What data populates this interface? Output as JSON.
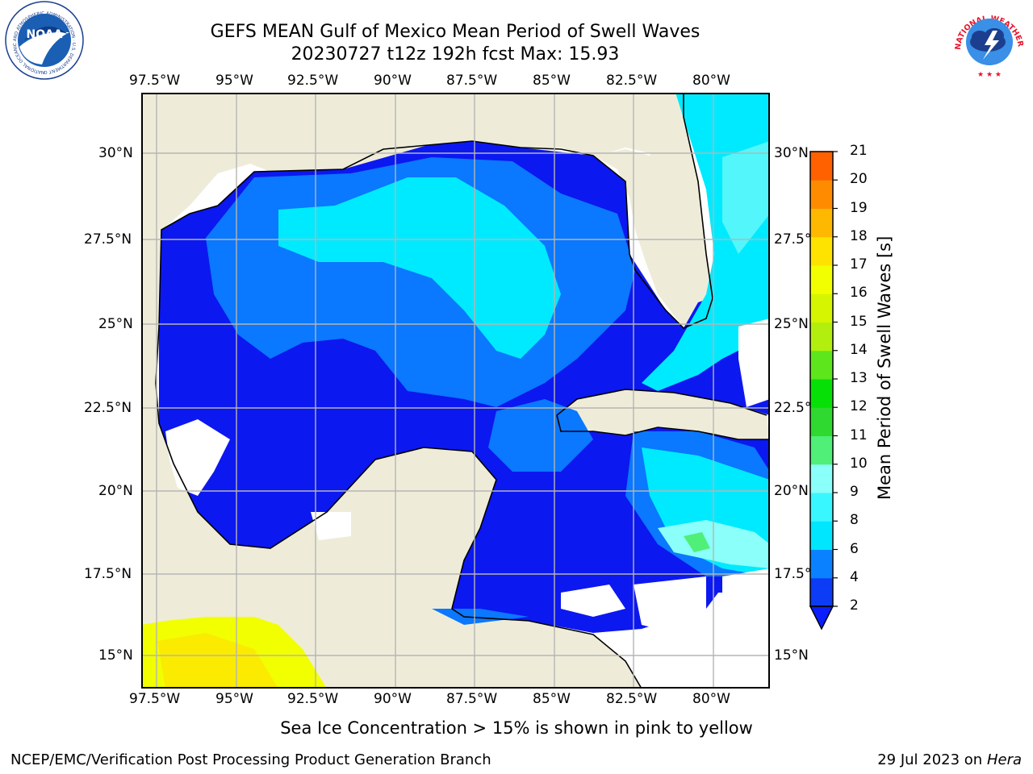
{
  "header": {
    "title": "GEFS MEAN Gulf of Mexico Mean Period of Swell Waves",
    "subtitle": "20230727 t12z 192h fcst   Max: 15.93"
  },
  "logos": {
    "left": "NOAA",
    "left_ring": "NATIONAL OCEANIC AND ATMOSPHERIC ADMINISTRATION · U.S. DEPARTMENT OF COMMERCE",
    "right_ring": "NATIONAL WEATHER SERVICE"
  },
  "map": {
    "lon_top": [
      "97.5°W",
      "95°W",
      "92.5°W",
      "90°W",
      "87.5°W",
      "85°W",
      "82.5°W",
      "80°W"
    ],
    "lon_bottom": [
      "97.5°W",
      "95°W",
      "92.5°W",
      "90°W",
      "87.5°W",
      "85°W",
      "82.5°W",
      "80°W"
    ],
    "lat_left": [
      "30°N",
      "27.5°N",
      "25°N",
      "22.5°N",
      "20°N",
      "17.5°N",
      "15°N"
    ],
    "lat_right": [
      "30°N",
      "27.5°N",
      "25°N",
      "22.5°N",
      "20°N",
      "17.5°N",
      "15°N"
    ],
    "extent": {
      "lon": [
        -98,
        -79.2
      ],
      "lat": [
        14,
        31.8
      ]
    },
    "colors": {
      "land": "#eeecd9",
      "coast": "#000000",
      "grid": "#b5b5b5",
      "missing": "#ffffff"
    }
  },
  "colorbar": {
    "label": "Mean Period of Swell Waves [s]",
    "ticks": [
      "2",
      "4",
      "6",
      "8",
      "9",
      "10",
      "11",
      "12",
      "13",
      "14",
      "15",
      "16",
      "17",
      "18",
      "19",
      "20",
      "21"
    ],
    "colors": [
      "#0c3cf5",
      "#0a82ff",
      "#00e6ff",
      "#39f7ff",
      "#8bfff9",
      "#50ef78",
      "#2fd92f",
      "#07e007",
      "#5ee61c",
      "#b2ef0e",
      "#d6f500",
      "#f2ff00",
      "#ffe300",
      "#ffb800",
      "#ff8c00",
      "#ff6000",
      "#ff3c00",
      "#ff1a00"
    ],
    "extend_color": "#0a1eff"
  },
  "footer": {
    "note": "Sea Ice Concentration > 15% is shown in pink to yellow",
    "credit": "NCEP/EMC/Verification Post Processing Product Generation Branch",
    "date": "29 Jul 2023 on ",
    "machine": "Hera"
  }
}
